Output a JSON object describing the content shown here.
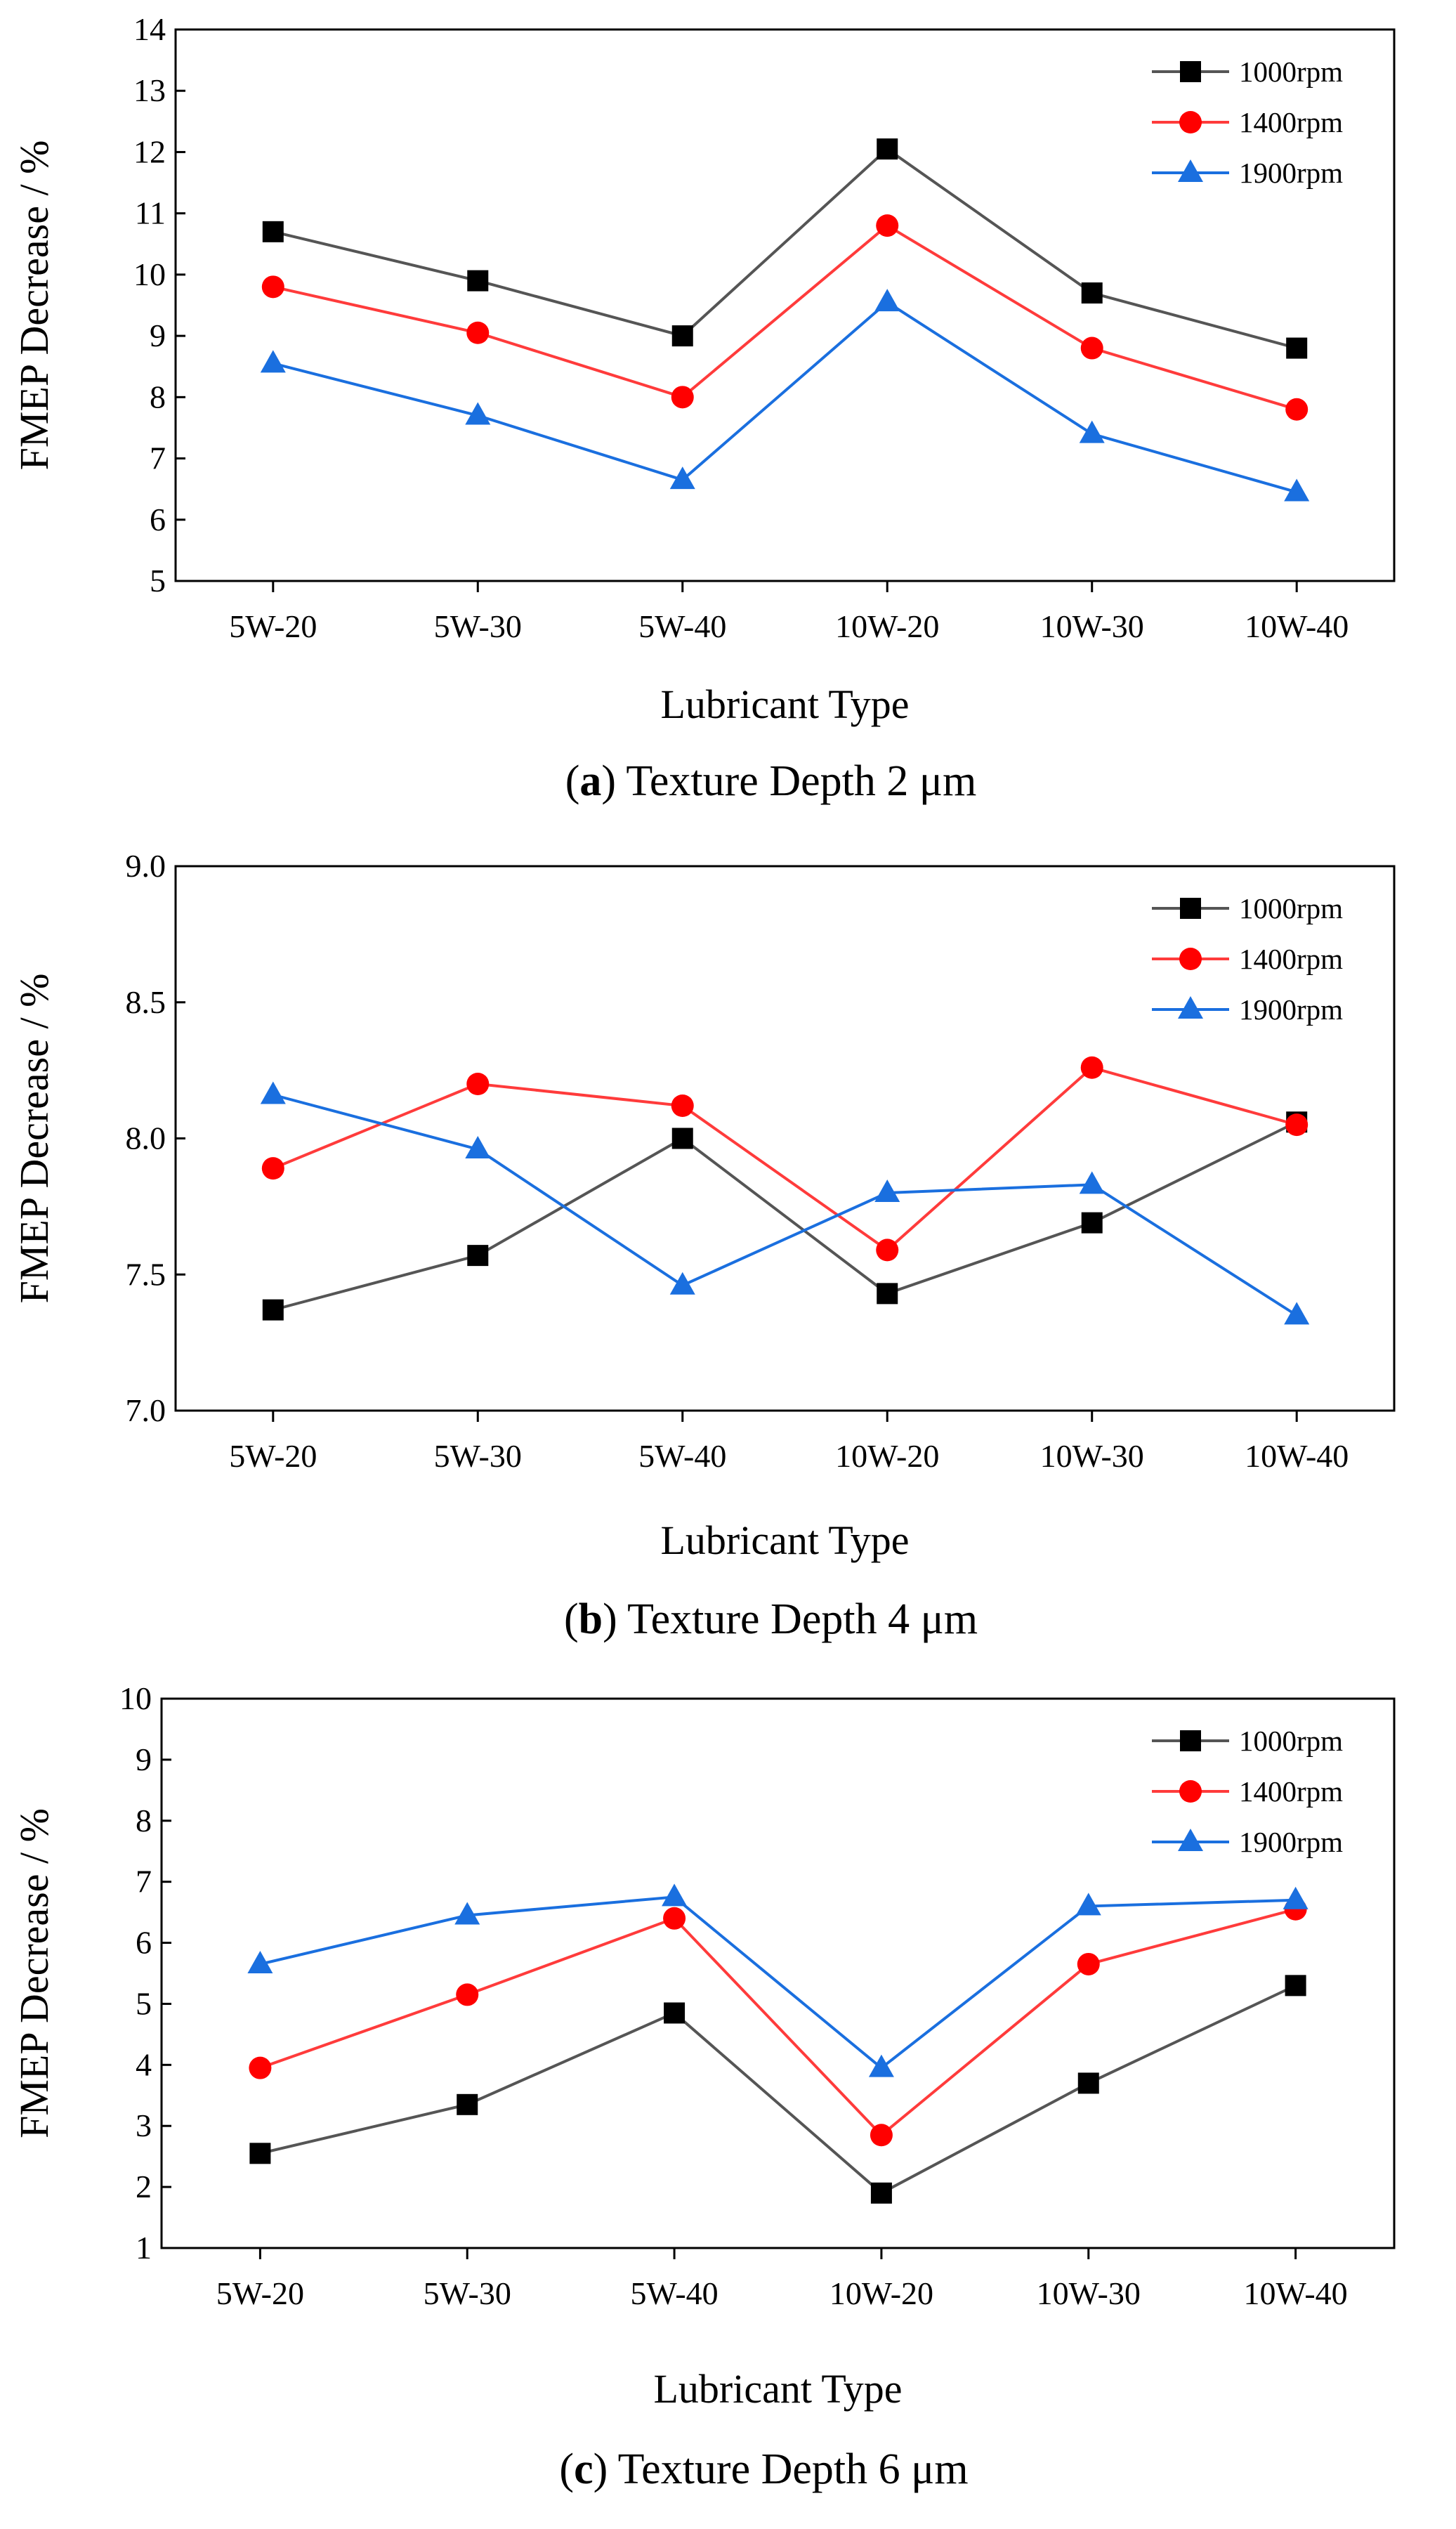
{
  "series_styles": [
    {
      "name": "1000rpm",
      "color": "#000000",
      "line_color": "#555555",
      "marker": "square"
    },
    {
      "name": "1400rpm",
      "color": "#ff0000",
      "line_color": "#ff3b3b",
      "marker": "circle"
    },
    {
      "name": "1900rpm",
      "color": "#1a6fdf",
      "line_color": "#1a6fdf",
      "marker": "triangle"
    }
  ],
  "chart_data": [
    {
      "type": "line",
      "caption_letter": "a",
      "caption_text": " Texture Depth 2 μm",
      "xlabel": "Lubricant Type",
      "ylabel": "FMEP Decrease / %",
      "categories": [
        "5W-20",
        "5W-30",
        "5W-40",
        "10W-20",
        "10W-30",
        "10W-40"
      ],
      "ylim": [
        5,
        14
      ],
      "yticks": [
        "5",
        "6",
        "7",
        "8",
        "9",
        "10",
        "11",
        "12",
        "13",
        "14"
      ],
      "legend_position": "top-right",
      "series": [
        {
          "name": "1000rpm",
          "values": [
            10.7,
            9.9,
            9.0,
            12.05,
            9.7,
            8.8
          ]
        },
        {
          "name": "1400rpm",
          "values": [
            9.8,
            9.05,
            8.0,
            10.8,
            8.8,
            7.8
          ]
        },
        {
          "name": "1900rpm",
          "values": [
            8.55,
            7.7,
            6.65,
            9.55,
            7.4,
            6.45
          ]
        }
      ]
    },
    {
      "type": "line",
      "caption_letter": "b",
      "caption_text": " Texture Depth 4 μm",
      "xlabel": "Lubricant Type",
      "ylabel": "FMEP Decrease / %",
      "categories": [
        "5W-20",
        "5W-30",
        "5W-40",
        "10W-20",
        "10W-30",
        "10W-40"
      ],
      "ylim": [
        7.0,
        9.0
      ],
      "yticks": [
        "7.0",
        "7.5",
        "8.0",
        "8.5",
        "9.0"
      ],
      "legend_position": "top-right",
      "series": [
        {
          "name": "1000rpm",
          "values": [
            7.37,
            7.57,
            8.0,
            7.43,
            7.69,
            8.06
          ]
        },
        {
          "name": "1400rpm",
          "values": [
            7.89,
            8.2,
            8.12,
            7.59,
            8.26,
            8.05
          ]
        },
        {
          "name": "1900rpm",
          "values": [
            8.16,
            7.96,
            7.46,
            7.8,
            7.83,
            7.35
          ]
        }
      ]
    },
    {
      "type": "line",
      "caption_letter": "c",
      "caption_text": " Texture Depth 6 μm",
      "xlabel": "Lubricant Type",
      "ylabel": "FMEP Decrease / %",
      "categories": [
        "5W-20",
        "5W-30",
        "5W-40",
        "10W-20",
        "10W-30",
        "10W-40"
      ],
      "ylim": [
        1,
        10
      ],
      "yticks": [
        "1",
        "2",
        "3",
        "4",
        "5",
        "6",
        "7",
        "8",
        "9",
        "10"
      ],
      "legend_position": "top-right",
      "series": [
        {
          "name": "1000rpm",
          "values": [
            2.55,
            3.35,
            4.85,
            1.9,
            3.7,
            5.3
          ]
        },
        {
          "name": "1400rpm",
          "values": [
            3.95,
            5.15,
            6.4,
            2.85,
            5.65,
            6.55
          ]
        },
        {
          "name": "1900rpm",
          "values": [
            5.65,
            6.45,
            6.75,
            3.95,
            6.6,
            6.7
          ]
        }
      ]
    }
  ]
}
